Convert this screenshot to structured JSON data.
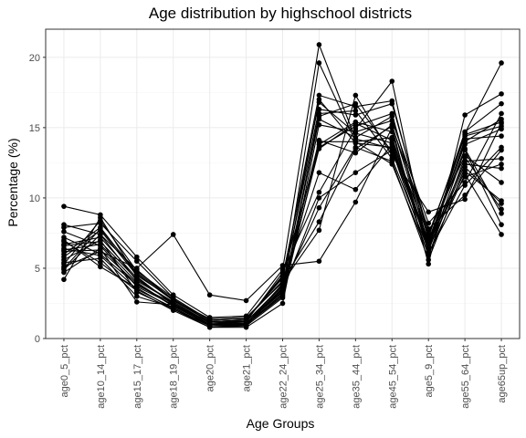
{
  "chart_data": {
    "type": "line",
    "title": "Age distribution by highschool districts",
    "xlabel": "Age Groups",
    "ylabel": "Percentage (%)",
    "ylim": [
      0,
      22
    ],
    "yticks": [
      0,
      5,
      10,
      15,
      20
    ],
    "grid": true,
    "legend": "none",
    "categories": [
      "age0_5_pct",
      "age10_14_pct",
      "age15_17_pct",
      "age18_19_pct",
      "age20_pct",
      "age21_pct",
      "age22_24_pct",
      "age25_34_pct",
      "age35_44_pct",
      "age45_54_pct",
      "age5_9_pct",
      "age55_64_pct",
      "age65up_pct"
    ],
    "series": [
      {
        "values": [
          9.4,
          8.8,
          5.8,
          3.1,
          1.5,
          1.6,
          4.9,
          20.9,
          14.2,
          13.5,
          6.5,
          14.6,
          19.6
        ]
      },
      {
        "values": [
          4.2,
          8.6,
          4.4,
          2.4,
          1.2,
          1.3,
          3.3,
          19.6,
          14.0,
          12.4,
          6.0,
          11.7,
          7.4
        ]
      },
      {
        "values": [
          5.1,
          6.2,
          5.0,
          7.4,
          3.1,
          2.7,
          5.2,
          5.5,
          9.7,
          15.0,
          5.3,
          15.9,
          17.4
        ]
      },
      {
        "values": [
          7.9,
          8.2,
          5.5,
          2.9,
          1.3,
          1.4,
          4.3,
          17.3,
          16.5,
          16.9,
          7.2,
          14.7,
          16.7
        ]
      },
      {
        "values": [
          8.1,
          7.4,
          4.9,
          2.7,
          1.4,
          1.5,
          4.0,
          7.7,
          17.3,
          13.0,
          9.0,
          9.9,
          15.3
        ]
      },
      {
        "values": [
          5.6,
          7.0,
          3.3,
          2.1,
          0.9,
          1.0,
          3.0,
          15.8,
          16.7,
          13.3,
          6.9,
          13.5,
          8.9
        ]
      },
      {
        "values": [
          6.3,
          6.7,
          4.0,
          2.3,
          1.0,
          1.1,
          3.3,
          13.5,
          15.3,
          14.1,
          6.4,
          14.2,
          14.4
        ]
      },
      {
        "values": [
          7.0,
          5.1,
          3.6,
          2.1,
          0.8,
          0.8,
          2.5,
          15.2,
          14.7,
          15.5,
          8.2,
          11.1,
          16.0
        ]
      },
      {
        "values": [
          6.0,
          7.9,
          4.6,
          2.7,
          1.2,
          1.2,
          4.7,
          10.4,
          14.9,
          18.3,
          6.2,
          13.4,
          8.1
        ]
      },
      {
        "values": [
          4.7,
          6.4,
          2.6,
          2.4,
          0.9,
          0.9,
          3.6,
          9.3,
          13.6,
          12.6,
          5.6,
          12.2,
          9.6
        ]
      },
      {
        "values": [
          5.4,
          5.7,
          3.0,
          2.2,
          0.9,
          1.0,
          3.9,
          11.8,
          10.6,
          13.8,
          6.6,
          12.6,
          12.8
        ]
      },
      {
        "values": [
          6.6,
          6.9,
          4.2,
          2.6,
          1.1,
          1.2,
          3.8,
          16.3,
          15.9,
          16.7,
          7.5,
          13.0,
          11.1
        ]
      },
      {
        "values": [
          7.2,
          6.0,
          3.8,
          2.5,
          1.0,
          1.1,
          3.5,
          14.1,
          13.2,
          15.2,
          6.8,
          14.0,
          15.6
        ]
      },
      {
        "values": [
          5.8,
          7.7,
          4.5,
          2.8,
          1.2,
          1.3,
          4.4,
          16.8,
          14.6,
          13.9,
          7.4,
          14.4,
          15.1
        ]
      },
      {
        "values": [
          6.9,
          5.4,
          3.4,
          2.0,
          0.8,
          0.9,
          2.9,
          13.8,
          15.4,
          14.7,
          6.1,
          10.9,
          13.6
        ]
      },
      {
        "values": [
          4.9,
          7.4,
          4.1,
          2.6,
          1.1,
          1.1,
          3.4,
          10.0,
          11.8,
          13.4,
          5.9,
          12.9,
          9.2
        ]
      },
      {
        "values": [
          6.2,
          6.3,
          3.9,
          2.3,
          1.0,
          1.0,
          3.2,
          15.6,
          14.3,
          15.8,
          7.1,
          11.5,
          12.4
        ]
      },
      {
        "values": [
          5.3,
          8.4,
          4.8,
          2.9,
          1.3,
          1.4,
          4.1,
          8.3,
          13.5,
          15.1,
          7.8,
          10.2,
          13.4
        ]
      },
      {
        "values": [
          6.7,
          7.2,
          4.3,
          2.5,
          1.1,
          1.2,
          3.7,
          14.0,
          14.0,
          14.3,
          6.7,
          14.5,
          15.4
        ]
      },
      {
        "values": [
          6.4,
          5.9,
          3.5,
          2.2,
          0.9,
          1.0,
          3.1,
          16.0,
          16.2,
          12.8,
          6.3,
          12.4,
          12.1
        ]
      },
      {
        "values": [
          7.6,
          6.6,
          3.7,
          2.4,
          1.0,
          1.1,
          3.6,
          17.0,
          13.9,
          13.6,
          7.0,
          13.8,
          14.9
        ]
      },
      {
        "values": [
          5.0,
          7.8,
          4.7,
          2.8,
          1.2,
          1.3,
          4.5,
          13.6,
          15.1,
          16.0,
          6.5,
          11.9,
          9.8
        ]
      }
    ]
  }
}
